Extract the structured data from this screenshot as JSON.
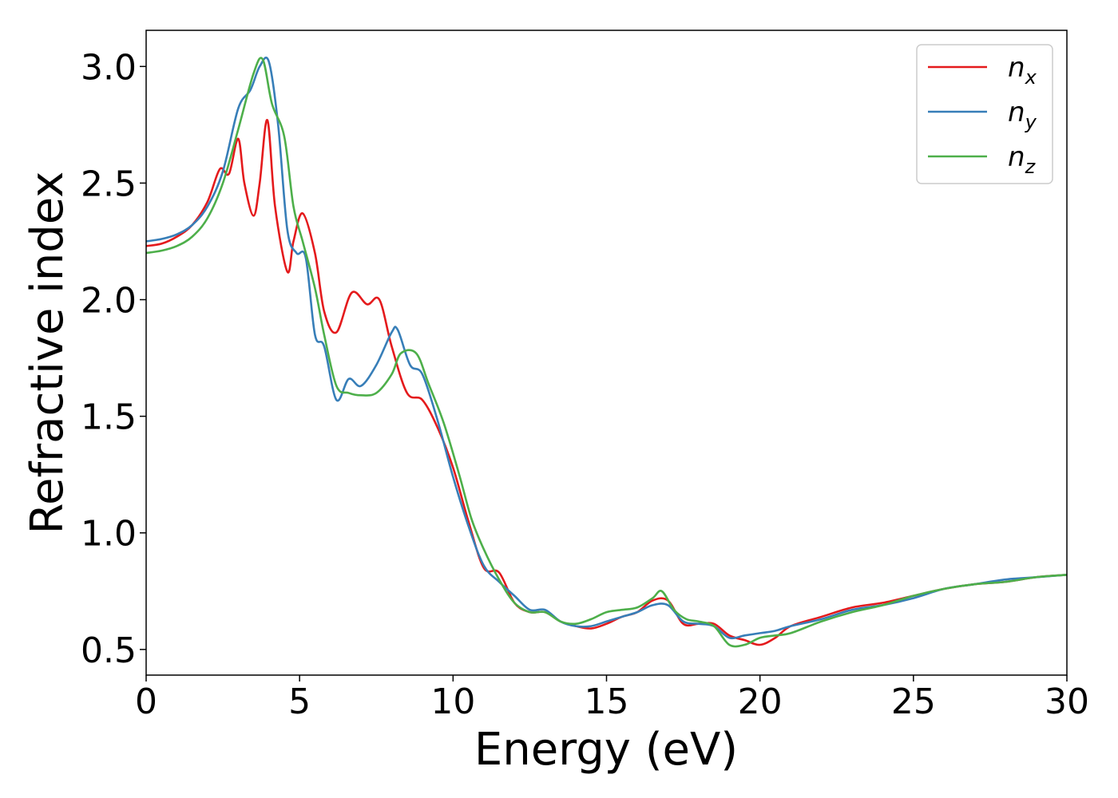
{
  "chart_data": {
    "type": "line",
    "xlabel": "Energy (eV)",
    "ylabel": "Refractive index",
    "xlim": [
      0,
      30
    ],
    "ylim": [
      0.39,
      3.155
    ],
    "xticks": [
      0,
      5,
      10,
      15,
      20,
      25,
      30
    ],
    "xtick_labels": [
      "0",
      "5",
      "10",
      "15",
      "20",
      "25",
      "30"
    ],
    "yticks": [
      0.5,
      1.0,
      1.5,
      2.0,
      2.5,
      3.0
    ],
    "ytick_labels": [
      "0.5",
      "1.0",
      "1.5",
      "2.0",
      "2.5",
      "3.0"
    ],
    "grid": false,
    "legend_position": "top-right",
    "series": [
      {
        "name": "n",
        "subscript": "x",
        "color": "#e41a1c",
        "x": [
          0,
          0.5,
          1,
          1.5,
          2,
          2.4,
          2.7,
          3,
          3.2,
          3.5,
          3.7,
          3.95,
          4.2,
          4.6,
          4.8,
          5.1,
          5.5,
          5.8,
          6.2,
          6.7,
          7.2,
          7.6,
          8,
          8.5,
          9,
          9.5,
          10,
          10.5,
          11,
          11.5,
          12,
          12.5,
          13,
          13.5,
          14,
          14.5,
          15,
          15.5,
          16,
          16.5,
          17,
          17.5,
          18,
          18.5,
          19,
          19.5,
          20,
          20.5,
          21,
          22,
          23,
          24,
          25,
          26,
          27,
          28,
          29,
          30
        ],
        "y": [
          2.23,
          2.24,
          2.27,
          2.32,
          2.42,
          2.56,
          2.54,
          2.69,
          2.5,
          2.36,
          2.5,
          2.77,
          2.4,
          2.12,
          2.25,
          2.37,
          2.2,
          1.95,
          1.86,
          2.03,
          1.98,
          2.0,
          1.8,
          1.6,
          1.57,
          1.45,
          1.28,
          1.05,
          0.85,
          0.83,
          0.7,
          0.66,
          0.66,
          0.62,
          0.6,
          0.59,
          0.61,
          0.64,
          0.66,
          0.71,
          0.71,
          0.61,
          0.61,
          0.61,
          0.56,
          0.54,
          0.52,
          0.55,
          0.6,
          0.64,
          0.68,
          0.7,
          0.73,
          0.76,
          0.78,
          0.79,
          0.81,
          0.82
        ]
      },
      {
        "name": "n",
        "subscript": "y",
        "color": "#377eb8",
        "x": [
          0,
          0.5,
          1,
          1.5,
          2,
          2.5,
          3,
          3.4,
          3.7,
          4.0,
          4.3,
          4.6,
          4.9,
          5.2,
          5.5,
          5.8,
          6.2,
          6.6,
          7,
          7.5,
          8,
          8.2,
          8.6,
          9,
          9.5,
          10,
          10.5,
          11,
          11.5,
          12,
          12.5,
          13,
          13.5,
          14,
          14.5,
          15,
          15.5,
          16,
          16.5,
          17,
          17.5,
          18,
          18.5,
          19,
          19.5,
          20,
          20.5,
          21,
          22,
          23,
          24,
          25,
          26,
          27,
          28,
          29,
          30
        ],
        "y": [
          2.25,
          2.26,
          2.28,
          2.32,
          2.4,
          2.55,
          2.82,
          2.9,
          3.0,
          3.02,
          2.75,
          2.3,
          2.2,
          2.18,
          1.85,
          1.8,
          1.57,
          1.66,
          1.63,
          1.72,
          1.86,
          1.87,
          1.72,
          1.68,
          1.48,
          1.24,
          1.03,
          0.86,
          0.79,
          0.73,
          0.67,
          0.67,
          0.62,
          0.6,
          0.6,
          0.62,
          0.64,
          0.66,
          0.69,
          0.69,
          0.62,
          0.61,
          0.6,
          0.55,
          0.56,
          0.57,
          0.58,
          0.6,
          0.63,
          0.67,
          0.69,
          0.72,
          0.76,
          0.78,
          0.8,
          0.81,
          0.82
        ]
      },
      {
        "name": "n",
        "subscript": "z",
        "color": "#4daf4a",
        "x": [
          0,
          0.5,
          1,
          1.5,
          2,
          2.5,
          3,
          3.5,
          3.8,
          4.1,
          4.5,
          4.8,
          5.1,
          5.5,
          5.8,
          6.2,
          6.6,
          7,
          7.5,
          8,
          8.3,
          8.8,
          9.2,
          9.7,
          10.2,
          10.6,
          11,
          11.5,
          12,
          12.5,
          13,
          13.5,
          14,
          14.5,
          15,
          15.5,
          16,
          16.5,
          16.8,
          17.2,
          17.6,
          18,
          18.5,
          19,
          19.5,
          20,
          20.5,
          21,
          22,
          23,
          24,
          25,
          26,
          27,
          28,
          29,
          30
        ],
        "y": [
          2.2,
          2.21,
          2.23,
          2.27,
          2.35,
          2.5,
          2.73,
          2.97,
          3.03,
          2.84,
          2.7,
          2.4,
          2.25,
          2.05,
          1.85,
          1.63,
          1.6,
          1.59,
          1.6,
          1.68,
          1.77,
          1.77,
          1.64,
          1.47,
          1.25,
          1.06,
          0.93,
          0.8,
          0.7,
          0.66,
          0.66,
          0.62,
          0.61,
          0.63,
          0.66,
          0.67,
          0.68,
          0.72,
          0.75,
          0.67,
          0.63,
          0.62,
          0.6,
          0.52,
          0.52,
          0.55,
          0.56,
          0.57,
          0.62,
          0.66,
          0.69,
          0.73,
          0.76,
          0.78,
          0.79,
          0.81,
          0.82
        ]
      }
    ]
  }
}
